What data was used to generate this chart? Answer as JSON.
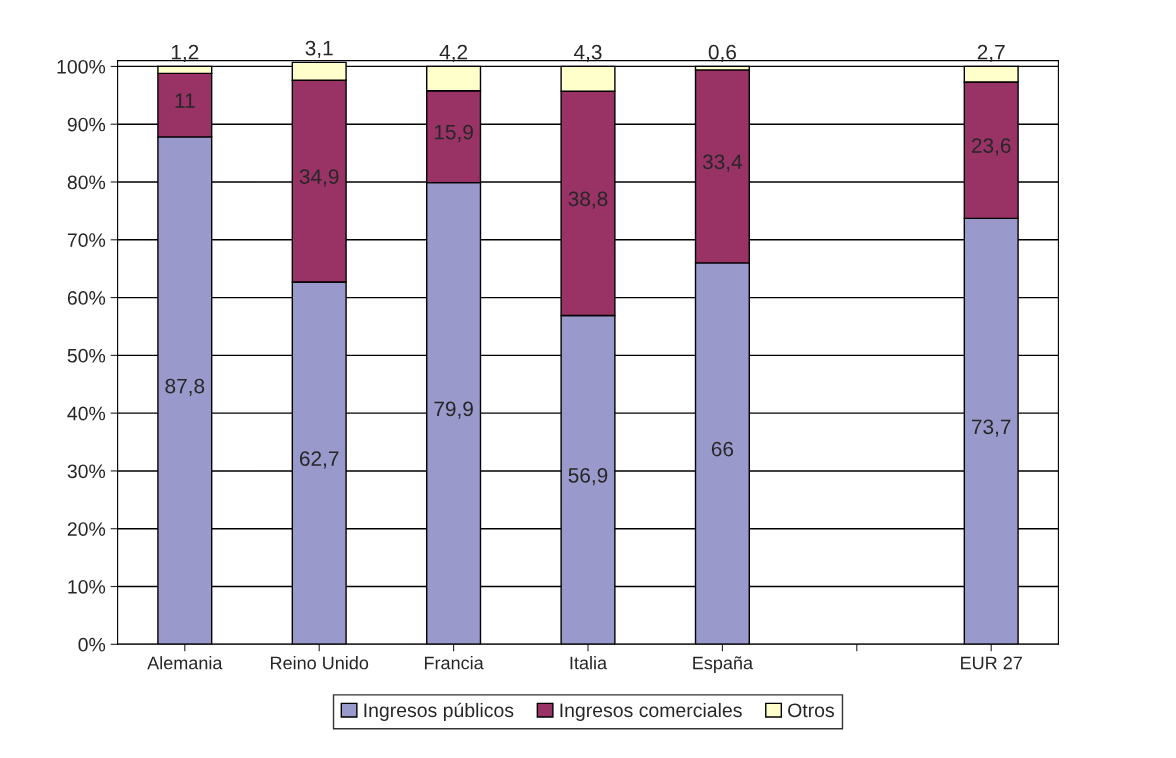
{
  "chart_data": {
    "type": "bar",
    "stacked": true,
    "categories": [
      "Alemania",
      "Reino Unido",
      "Francia",
      "Italia",
      "España",
      null,
      "EUR 27"
    ],
    "series": [
      {
        "name": "Ingresos públicos",
        "color": "#9999cc",
        "values": [
          87.8,
          62.7,
          79.9,
          56.9,
          66,
          null,
          73.7
        ],
        "value_labels": [
          "87,8",
          "62,7",
          "79,9",
          "56,9",
          "66",
          null,
          "73,7"
        ]
      },
      {
        "name": "Ingresos comerciales",
        "color": "#993366",
        "values": [
          11,
          34.9,
          15.9,
          38.8,
          33.4,
          null,
          23.6
        ],
        "value_labels": [
          "11",
          "34,9",
          "15,9",
          "38,8",
          "33,4",
          null,
          "23,6"
        ]
      },
      {
        "name": "Otros",
        "color": "#ffffcc",
        "values": [
          1.2,
          3.1,
          4.2,
          4.3,
          0.6,
          null,
          2.7
        ],
        "value_labels": [
          "1,2",
          "3,1",
          "4,2",
          "4,3",
          "0,6",
          null,
          "2,7"
        ]
      }
    ],
    "ylim": [
      0,
      101
    ],
    "yticks": [
      {
        "value": 0,
        "label": "0%"
      },
      {
        "value": 10,
        "label": "10%"
      },
      {
        "value": 20,
        "label": "20%"
      },
      {
        "value": 30,
        "label": "30%"
      },
      {
        "value": 40,
        "label": "40%"
      },
      {
        "value": 50,
        "label": "50%"
      },
      {
        "value": 60,
        "label": "60%"
      },
      {
        "value": 70,
        "label": "70%"
      },
      {
        "value": 80,
        "label": "80%"
      },
      {
        "value": 90,
        "label": "90%"
      },
      {
        "value": 100,
        "label": "100%"
      }
    ],
    "grid": "y",
    "legend": "bottom"
  }
}
